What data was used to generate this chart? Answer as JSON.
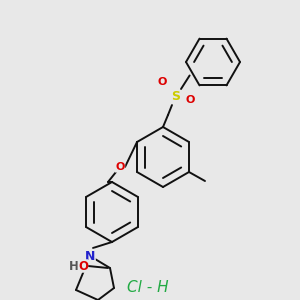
{
  "background_color": "#e8e8e8",
  "line_color": "#111111",
  "atom_colors": {
    "O": "#dd0000",
    "N": "#2222cc",
    "S": "#cccc00",
    "Cl": "#22aa44",
    "H_gray": "#666666"
  },
  "hcl_text": "Cl - H",
  "hcl_color": "#22aa44",
  "hcl_fontsize": 11,
  "bg": "#ebebeb"
}
